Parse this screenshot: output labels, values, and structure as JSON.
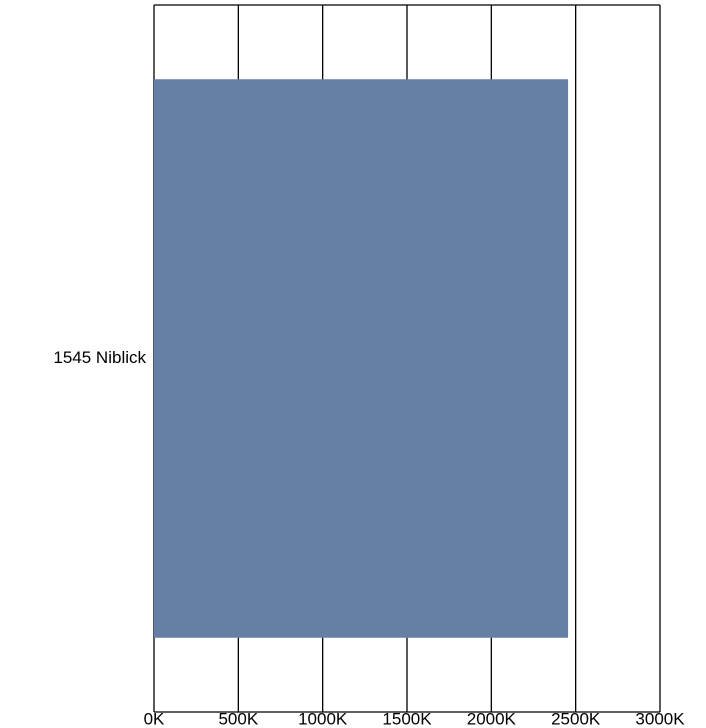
{
  "chart_data": {
    "type": "hbar",
    "categories": [
      "1545 Niblick"
    ],
    "values": [
      2455000
    ],
    "color": "#657fa5",
    "xlim": [
      0,
      3000000
    ],
    "xticks": [
      {
        "value": 0,
        "label": "0K"
      },
      {
        "value": 500000,
        "label": "500K"
      },
      {
        "value": 1000000,
        "label": "1000K"
      },
      {
        "value": 1500000,
        "label": "1500K"
      },
      {
        "value": 2000000,
        "label": "2000K"
      },
      {
        "value": 2500000,
        "label": "2500K"
      },
      {
        "value": 3000000,
        "label": "3000K"
      }
    ],
    "grid": true
  }
}
